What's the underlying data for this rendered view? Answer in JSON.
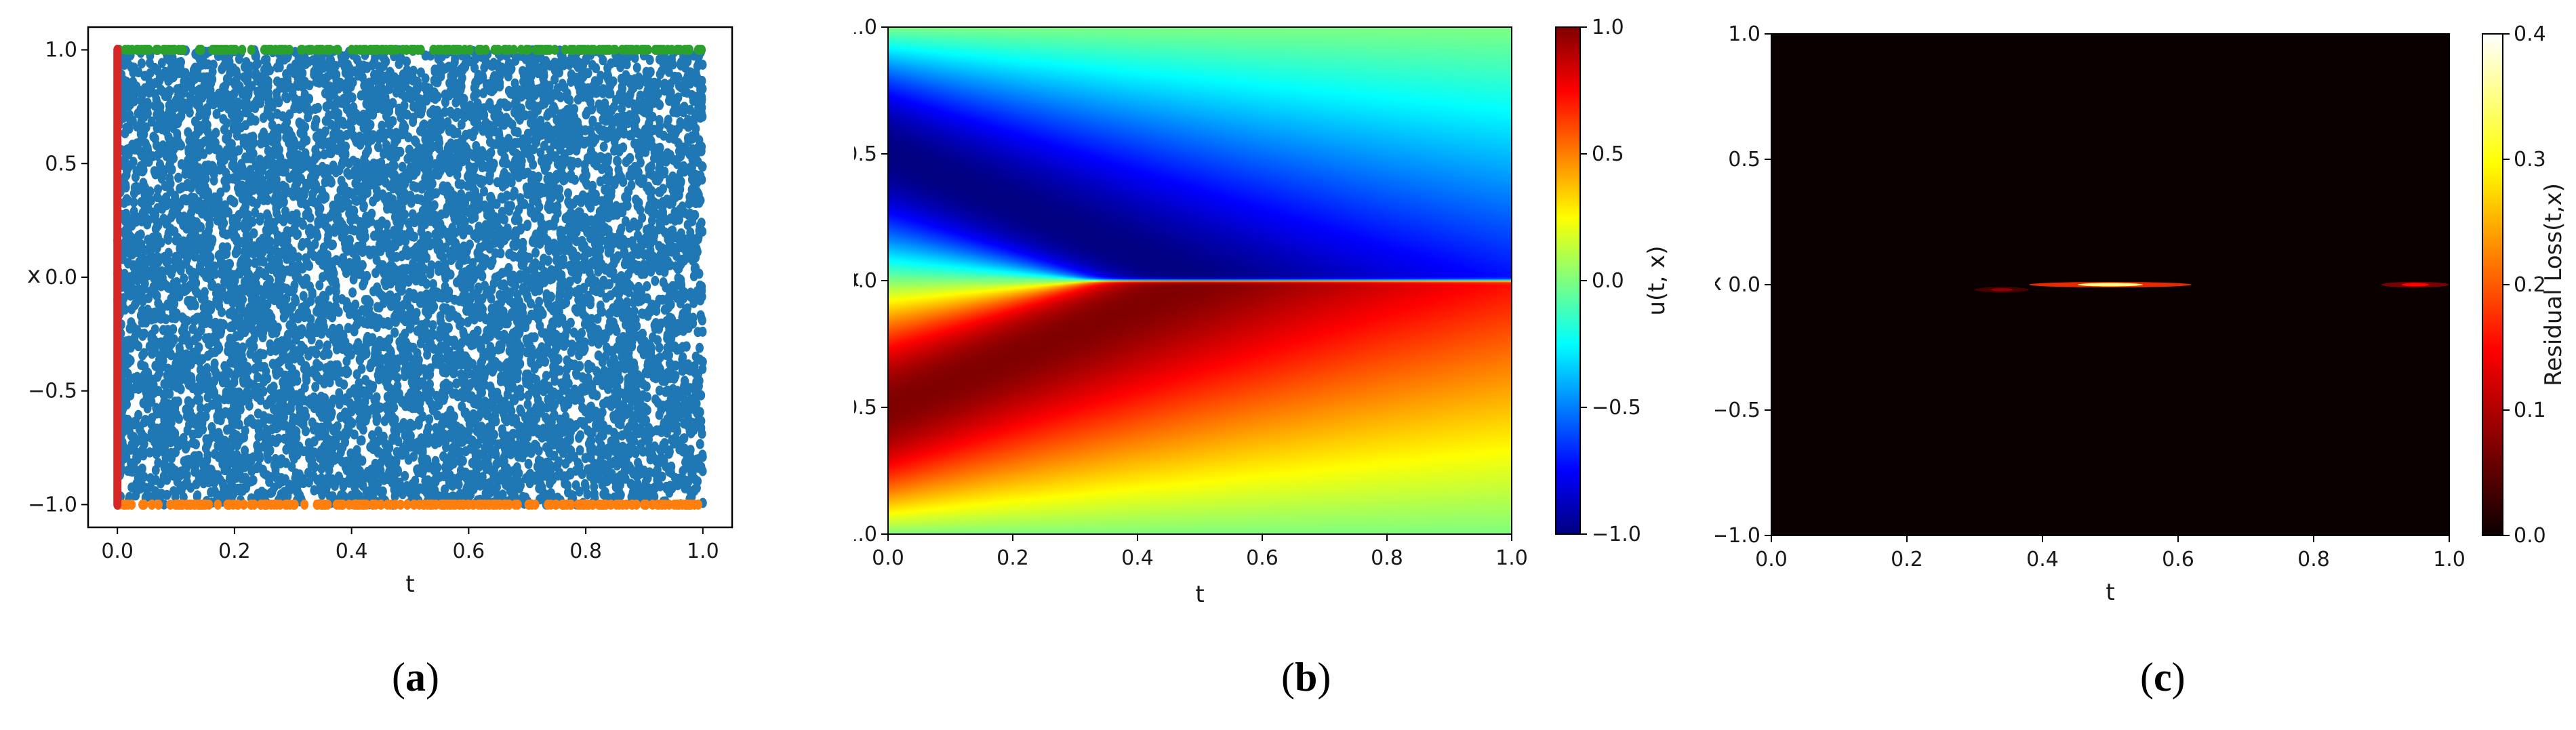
{
  "captions": [
    {
      "open": "(",
      "letter": "a",
      "close": ")"
    },
    {
      "open": "(",
      "letter": "b",
      "close": ")"
    },
    {
      "open": "(",
      "letter": "c",
      "close": ")"
    }
  ],
  "colors": {
    "interior": "#1f77b4",
    "boundary_top": "#2ca02c",
    "boundary_bottom": "#ff7f0e",
    "initial": "#d62728"
  },
  "chart_data": [
    {
      "type": "scatter",
      "xlabel": "t",
      "ylabel": "x",
      "xlim": [
        -0.05,
        1.05
      ],
      "ylim": [
        -1.1,
        1.1
      ],
      "xticks": [
        "0.0",
        "0.2",
        "0.4",
        "0.6",
        "0.8",
        "1.0"
      ],
      "yticks": [
        "1.0",
        "0.5",
        "0.0",
        "−0.5",
        "−1.0"
      ],
      "grid": false,
      "series": [
        {
          "kind": "interior collocation points",
          "color": "#1f77b4",
          "x_range": [
            0,
            1
          ],
          "y_range": [
            -1,
            1
          ],
          "approx_count": 8000
        },
        {
          "kind": "boundary points x = 1",
          "color": "#2ca02c",
          "x_range": [
            0,
            1
          ],
          "y": 1.0
        },
        {
          "kind": "boundary points x = -1",
          "color": "#ff7f0e",
          "x_range": [
            0,
            1
          ],
          "y": -1.0
        },
        {
          "kind": "initial points t = 0",
          "color": "#d62728",
          "x": 0.0,
          "y_range": [
            -1,
            1
          ]
        }
      ]
    },
    {
      "type": "heatmap",
      "xlabel": "t",
      "ylabel": "x",
      "xlim": [
        0.0,
        1.0
      ],
      "ylim": [
        -1.0,
        1.0
      ],
      "xticks": [
        "0.0",
        "0.2",
        "0.4",
        "0.6",
        "0.8",
        "1.0"
      ],
      "yticks": [
        "1.0",
        "0.5",
        "0.0",
        "−0.5",
        "−1.0"
      ],
      "colormap": "jet",
      "colorbar_label": "u(t, x)",
      "colorbar_range": [
        -1.0,
        1.0
      ],
      "colorbar_ticks": [
        "1.0",
        "0.5",
        "0.0",
        "−0.5",
        "−1.0"
      ],
      "field": "u(t,x) = -sin(pi x) at t = 0, forming a shock at x = 0 near t = 0.35"
    },
    {
      "type": "heatmap",
      "xlabel": "t",
      "ylabel": "x",
      "xlim": [
        0.0,
        1.0
      ],
      "ylim": [
        -1.0,
        1.0
      ],
      "xticks": [
        "0.0",
        "0.2",
        "0.4",
        "0.6",
        "0.8",
        "1.0"
      ],
      "yticks": [
        "1.0",
        "0.5",
        "0.0",
        "−0.5",
        "−1.0"
      ],
      "colormap": "hot",
      "colorbar_label": "Residual Loss(t,x)",
      "colorbar_range": [
        0.0,
        0.4
      ],
      "colorbar_ticks": [
        "0.4",
        "0.3",
        "0.2",
        "0.1",
        "0.0"
      ],
      "hotspots": [
        {
          "t_range": [
            0.3,
            0.38
          ],
          "x": -0.02,
          "peak": 0.08
        },
        {
          "t_range": [
            0.38,
            0.62
          ],
          "x": 0.0,
          "peak": 0.35
        },
        {
          "t_range": [
            0.9,
            1.0
          ],
          "x": 0.0,
          "peak": 0.15
        }
      ]
    }
  ]
}
